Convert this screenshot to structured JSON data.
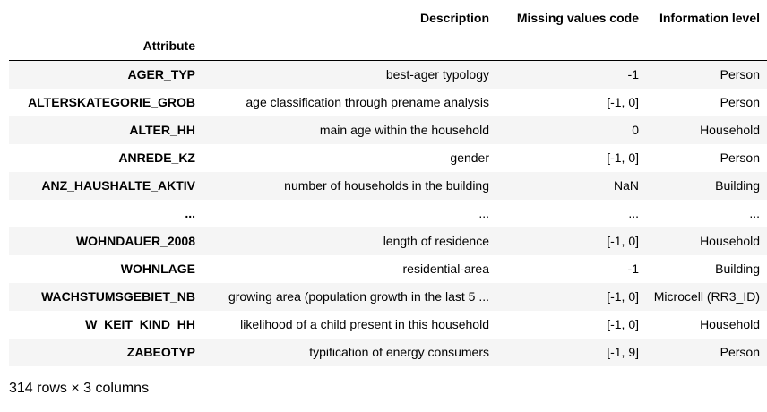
{
  "table": {
    "columns": [
      "Description",
      "Missing values code",
      "Information level"
    ],
    "index_name": "Attribute",
    "rows": [
      {
        "attribute": "AGER_TYP",
        "description": "best-ager typology",
        "missing": "-1",
        "level": "Person"
      },
      {
        "attribute": "ALTERSKATEGORIE_GROB",
        "description": "age classification through prename analysis",
        "missing": "[-1, 0]",
        "level": "Person"
      },
      {
        "attribute": "ALTER_HH",
        "description": "main age within the household",
        "missing": "0",
        "level": "Household"
      },
      {
        "attribute": "ANREDE_KZ",
        "description": "gender",
        "missing": "[-1, 0]",
        "level": "Person"
      },
      {
        "attribute": "ANZ_HAUSHALTE_AKTIV",
        "description": "number of households in the building",
        "missing": "NaN",
        "level": "Building"
      },
      {
        "attribute": "...",
        "description": "...",
        "missing": "...",
        "level": "..."
      },
      {
        "attribute": "WOHNDAUER_2008",
        "description": "length of residence",
        "missing": "[-1, 0]",
        "level": "Household"
      },
      {
        "attribute": "WOHNLAGE",
        "description": "residential-area",
        "missing": "-1",
        "level": "Building"
      },
      {
        "attribute": "WACHSTUMSGEBIET_NB",
        "description": "growing area (population growth in the last 5 ...",
        "missing": "[-1, 0]",
        "level": "Microcell (RR3_ID)"
      },
      {
        "attribute": "W_KEIT_KIND_HH",
        "description": "likelihood of a child present in this household",
        "missing": "[-1, 0]",
        "level": "Household"
      },
      {
        "attribute": "ZABEOTYP",
        "description": "typification of energy consumers",
        "missing": "[-1, 9]",
        "level": "Person"
      }
    ]
  },
  "shape_text": "314 rows × 3 columns"
}
